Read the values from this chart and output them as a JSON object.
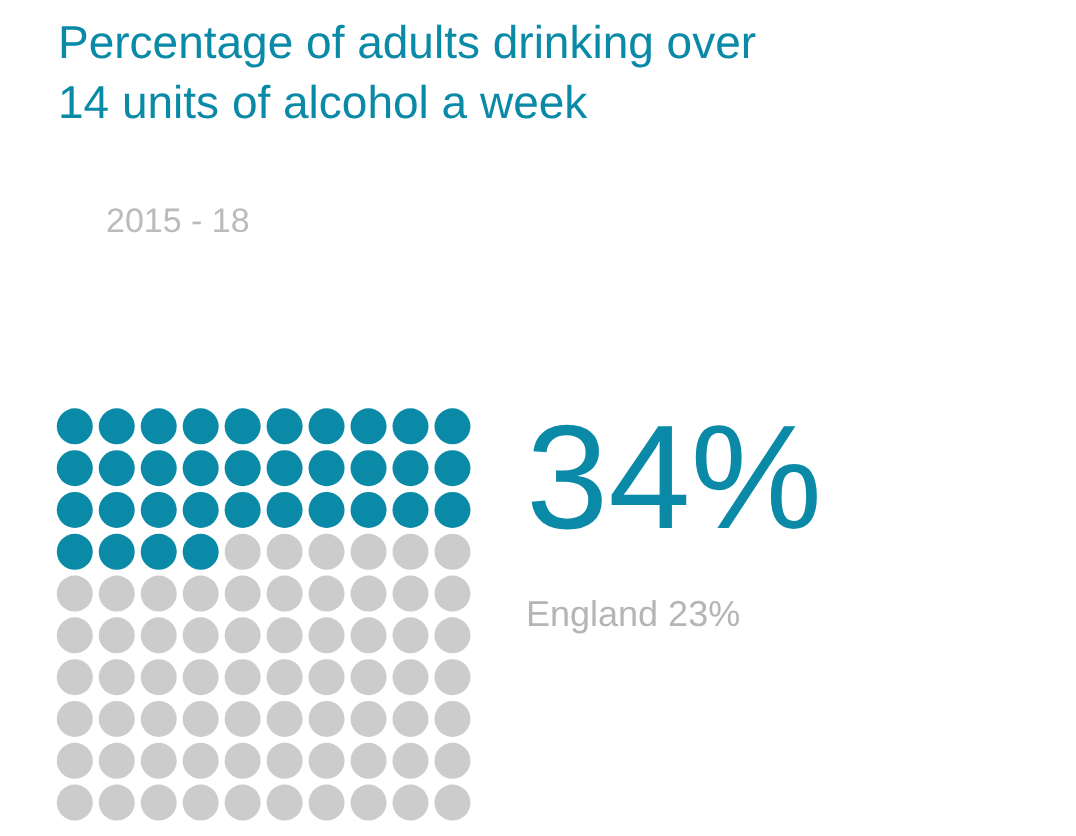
{
  "chart_data": {
    "type": "other",
    "title": "Percentage of adults drinking over\n14 units of alcohol a week",
    "subtitle": "2015 - 18",
    "categories": [
      null
    ],
    "values": [
      34
    ],
    "colors": [
      "#0b8aa8"
    ],
    "value_labels": [
      "34%"
    ],
    "annotations": [
      "England 23%"
    ]
  }
}
